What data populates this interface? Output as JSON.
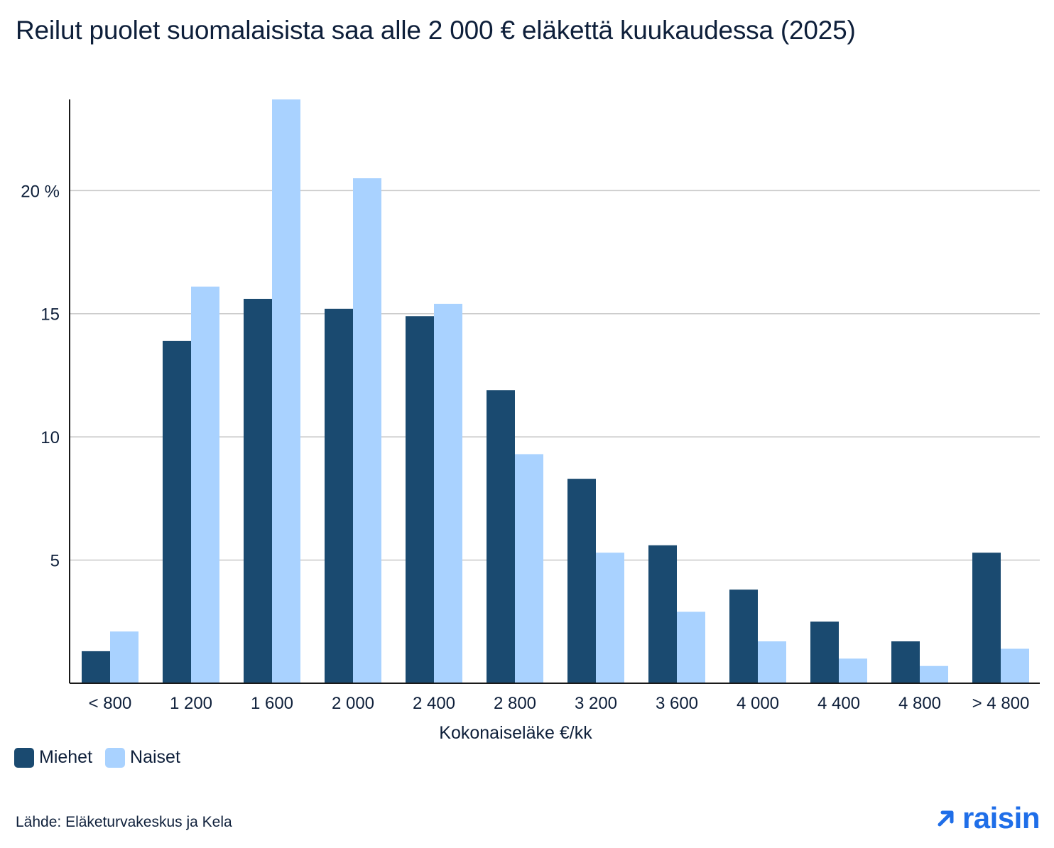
{
  "title": "Reilut puolet suomalaisista saa alle 2 000 € eläkettä kuukaudessa (2025)",
  "source": "Lähde: Eläketurvakeskus ja Kela",
  "logo_text": "raisin",
  "colors": {
    "miehet": "#1a4a70",
    "naiset": "#a9d2ff",
    "grid": "#c8c8c8",
    "axis": "#1a1a1a",
    "logo": "#1f6ee8"
  },
  "legend": {
    "miehet": "Miehet",
    "naiset": "Naiset"
  },
  "chart_data": {
    "type": "bar",
    "title": "Reilut puolet suomalaisista saa alle 2 000 € eläkettä kuukaudessa (2025)",
    "xlabel": "Kokonaiseläke €/kk",
    "ylabel": "",
    "categories": [
      "< 800",
      "1 200",
      "1 600",
      "2 000",
      "2 400",
      "2 800",
      "3 200",
      "3 600",
      "4 000",
      "4 400",
      "4 800",
      "> 4 800"
    ],
    "series": [
      {
        "name": "Miehet",
        "values": [
          1.3,
          13.9,
          15.6,
          15.2,
          14.9,
          11.9,
          8.3,
          5.6,
          3.8,
          2.5,
          1.7,
          5.3
        ]
      },
      {
        "name": "Naiset",
        "values": [
          2.1,
          16.1,
          23.7,
          20.5,
          15.4,
          9.3,
          5.3,
          2.9,
          1.7,
          1.0,
          0.7,
          1.4
        ]
      }
    ],
    "yticks": [
      5,
      10,
      15,
      20
    ],
    "ytick_labels": [
      "5",
      "10",
      "15",
      "20 %"
    ],
    "ylim": [
      0,
      23.7
    ],
    "grid": true,
    "legend_position": "bottom-left"
  }
}
